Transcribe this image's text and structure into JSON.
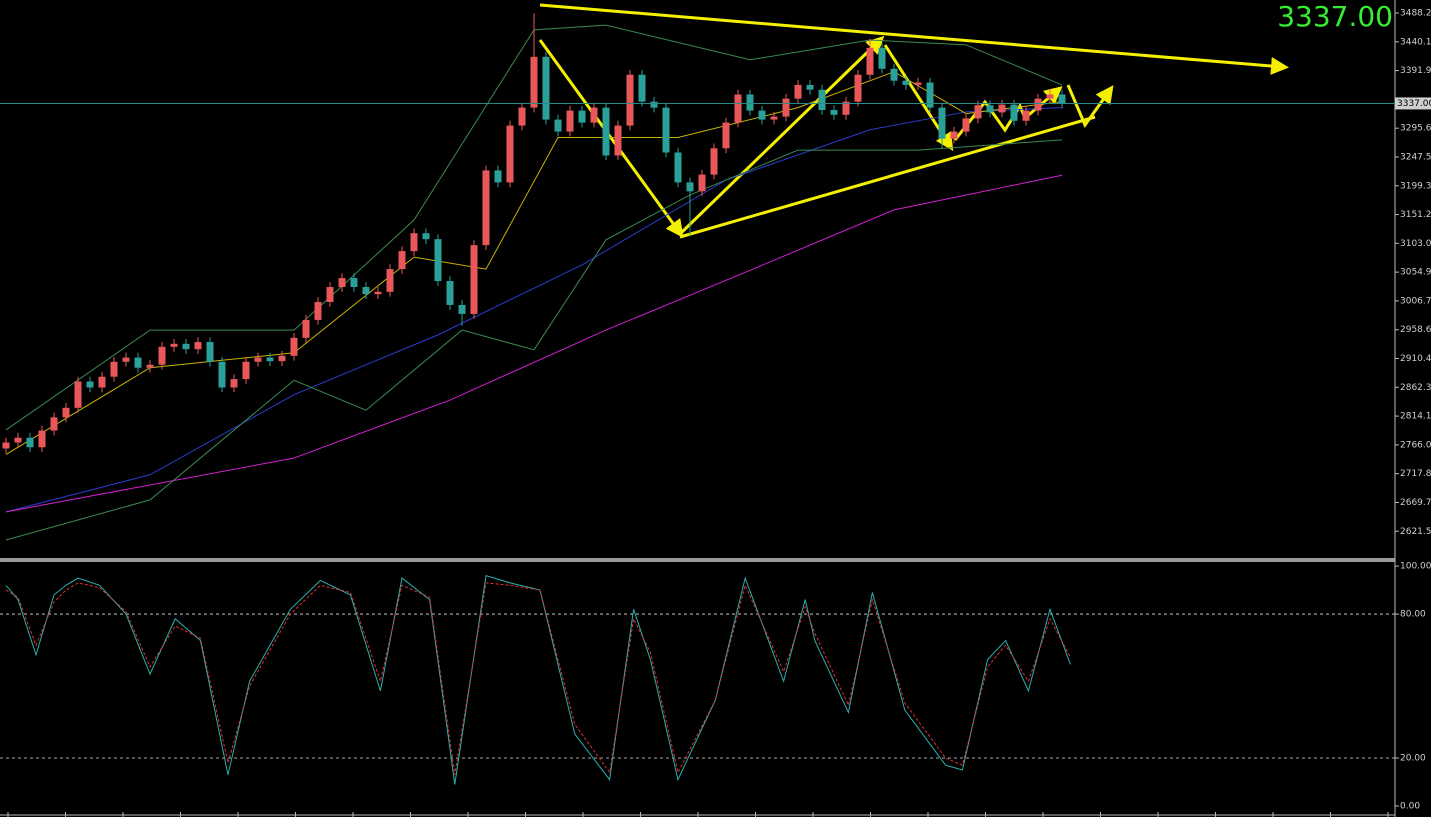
{
  "chart_data": [
    {
      "type": "candlestick",
      "open": [
        2760,
        2770,
        2778,
        2762,
        2790,
        2812,
        2828,
        2872,
        2862,
        2880,
        2905,
        2912,
        2895,
        2900,
        2930,
        2935,
        2926,
        2938,
        2905,
        2862,
        2876,
        2905,
        2912,
        2906,
        2915,
        2945,
        2975,
        3005,
        3030,
        3045,
        3030,
        3018,
        3022,
        3060,
        3090,
        3120,
        3110,
        3040,
        3000,
        2985,
        3100,
        3225,
        3205,
        3300,
        3330,
        3415,
        3310,
        3290,
        3325,
        3305,
        3330,
        3250,
        3300,
        3385,
        3340,
        3330,
        3255,
        3205,
        3190,
        3218,
        3262,
        3305,
        3352,
        3325,
        3310,
        3315,
        3345,
        3368,
        3360,
        3326,
        3318,
        3340,
        3385,
        3430,
        3395,
        3375,
        3368,
        3372,
        3330,
        3278,
        3290,
        3312,
        3334,
        3322,
        3335,
        3308,
        3325,
        3345,
        3352
      ],
      "high": [
        2778,
        2786,
        2786,
        2798,
        2820,
        2836,
        2880,
        2880,
        2888,
        2913,
        2920,
        2920,
        2908,
        2938,
        2943,
        2943,
        2946,
        2946,
        2913,
        2884,
        2913,
        2920,
        2920,
        2923,
        2953,
        2983,
        3013,
        3038,
        3053,
        3053,
        3038,
        3030,
        3068,
        3098,
        3128,
        3128,
        3118,
        3048,
        3008,
        3108,
        3233,
        3233,
        3308,
        3338,
        3488,
        3423,
        3318,
        3333,
        3333,
        3338,
        3338,
        3308,
        3393,
        3393,
        3348,
        3338,
        3263,
        3213,
        3226,
        3270,
        3313,
        3360,
        3360,
        3333,
        3323,
        3353,
        3376,
        3376,
        3368,
        3334,
        3348,
        3393,
        3445,
        3438,
        3403,
        3383,
        3380,
        3380,
        3338,
        3298,
        3320,
        3342,
        3342,
        3343,
        3343,
        3333,
        3353,
        3360,
        3360
      ],
      "low": [
        2752,
        2762,
        2754,
        2754,
        2782,
        2804,
        2820,
        2854,
        2854,
        2872,
        2897,
        2887,
        2887,
        2892,
        2922,
        2918,
        2918,
        2897,
        2854,
        2854,
        2868,
        2897,
        2898,
        2898,
        2907,
        2937,
        2967,
        2997,
        3022,
        3022,
        3010,
        3010,
        3014,
        3052,
        3082,
        3102,
        3032,
        2992,
        2965,
        2977,
        3092,
        3197,
        3197,
        3292,
        3322,
        3302,
        3282,
        3282,
        3297,
        3297,
        3242,
        3242,
        3292,
        3332,
        3322,
        3247,
        3197,
        3115,
        3182,
        3210,
        3254,
        3297,
        3317,
        3302,
        3302,
        3307,
        3337,
        3352,
        3318,
        3310,
        3310,
        3332,
        3377,
        3387,
        3367,
        3360,
        3360,
        3322,
        3262,
        3270,
        3282,
        3304,
        3314,
        3314,
        3300,
        3300,
        3317,
        3337,
        3329
      ],
      "close": [
        2770,
        2778,
        2762,
        2790,
        2812,
        2828,
        2872,
        2862,
        2880,
        2905,
        2912,
        2895,
        2900,
        2930,
        2935,
        2926,
        2938,
        2905,
        2862,
        2876,
        2905,
        2912,
        2906,
        2915,
        2945,
        2975,
        3005,
        3030,
        3045,
        3030,
        3018,
        3022,
        3060,
        3090,
        3120,
        3110,
        3040,
        3000,
        2985,
        3100,
        3225,
        3205,
        3300,
        3330,
        3415,
        3310,
        3290,
        3325,
        3305,
        3330,
        3250,
        3300,
        3385,
        3340,
        3330,
        3255,
        3205,
        3190,
        3218,
        3262,
        3305,
        3352,
        3325,
        3310,
        3315,
        3345,
        3368,
        3360,
        3326,
        3318,
        3340,
        3385,
        3430,
        3395,
        3375,
        3368,
        3372,
        3330,
        3278,
        3290,
        3312,
        3334,
        3322,
        3335,
        3308,
        3325,
        3345,
        3352,
        3337
      ],
      "up_color": "#e8585a",
      "down_color": "#2aa198",
      "ylim": [
        2578.5,
        3510
      ],
      "yticks": [
        3488.25,
        {
          "value": 3440.1,
          "label": "3440.10"
        },
        3391.95,
        3295.65,
        {
          "value": 3247.5,
          "label": "3247.50"
        },
        3199.35,
        {
          "value": 3151.2,
          "label": "3151.20"
        },
        3103.05,
        {
          "value": 3054.9,
          "label": "3054.90"
        },
        3006.75,
        {
          "value": 2958.6,
          "label": "2958.60"
        },
        2910.45,
        {
          "value": 2862.3,
          "label": "2862.30"
        },
        2814.15,
        {
          "value": 2766,
          "label": "2766.00"
        },
        2717.85,
        {
          "value": 2669.7,
          "label": "2669.70"
        },
        2621.55
      ],
      "current_price": {
        "value": 3337,
        "label": "3337.00"
      },
      "current_color": "#2a8a8a",
      "lines": [
        {
          "color": "#2a3ccc",
          "x": [
            0,
            12,
            24,
            36,
            48,
            60,
            72,
            80,
            88
          ],
          "values": [
            2654,
            2716,
            2850,
            2950,
            3067,
            3209,
            3293,
            3323,
            3330
          ]
        },
        {
          "color": "#d020d0",
          "x": [
            0,
            24,
            37,
            50,
            62,
            74,
            88
          ],
          "values": [
            2654,
            2744,
            2841,
            2958,
            3058,
            3159,
            3217
          ]
        },
        {
          "color": "#3a8a50",
          "x": [
            0,
            12,
            24,
            34,
            44,
            50,
            62,
            72,
            80,
            88
          ],
          "values": [
            2791,
            2958,
            2958,
            3142,
            3460,
            3468,
            3410,
            3443,
            3435,
            3368
          ]
        },
        {
          "color": "#3a8a50",
          "x": [
            0,
            12,
            24,
            30,
            38,
            44,
            50,
            57,
            66,
            76,
            88
          ],
          "values": [
            2607,
            2674,
            2874,
            2824,
            2958,
            2925,
            3109,
            3184,
            3259,
            3259,
            3276
          ]
        },
        {
          "color": "#c8b400",
          "x": [
            0,
            12,
            24,
            34,
            40,
            46,
            56,
            66,
            74,
            80,
            88
          ],
          "values": [
            2750,
            2895,
            2920,
            3080,
            3060,
            3280,
            3280,
            3330,
            3390,
            3320,
            3340
          ]
        }
      ]
    },
    {
      "type": "line",
      "x": [
        0,
        1,
        2.5,
        4,
        5,
        6,
        7.8,
        10,
        12,
        14.1,
        16.2,
        18.5,
        20.3,
        23.7,
        26.2,
        28.7,
        31.2,
        33,
        35.3,
        37.4,
        40,
        42,
        44.5,
        47.4,
        50.3,
        52.3,
        53.7,
        56,
        59.1,
        61.6,
        64.8,
        66.6,
        67.4,
        70.2,
        72.2,
        74.9,
        78.3,
        79.7,
        81.8,
        83.3,
        85.2,
        87,
        88.7
      ],
      "series": [
        {
          "color": "#2ab0b0",
          "dashed": false,
          "values": [
            92,
            86,
            63,
            88,
            92,
            95,
            92,
            80,
            55,
            78,
            69,
            13,
            52,
            82,
            94,
            88,
            48,
            95,
            86,
            9,
            96,
            93,
            90,
            30,
            11,
            82,
            61,
            11,
            44,
            95,
            52,
            86,
            69,
            39,
            89,
            40,
            17,
            15,
            61,
            69,
            48,
            82,
            59
          ]
        },
        {
          "color": "#e03030",
          "dashed": true,
          "values": [
            90,
            87,
            67,
            85,
            90,
            93,
            91,
            81,
            58,
            75,
            70,
            18,
            50,
            80,
            92,
            89,
            52,
            92,
            87,
            13,
            93,
            92,
            90,
            34,
            14,
            78,
            64,
            14,
            44,
            92,
            56,
            83,
            72,
            42,
            86,
            43,
            20,
            17,
            58,
            67,
            52,
            78,
            62
          ]
        }
      ],
      "ylim": [
        -3.75,
        101.7
      ],
      "yticks": [
        {
          "value": 100,
          "label": "100.00"
        },
        {
          "value": 80,
          "label": "80.00"
        },
        {
          "value": 20,
          "label": "20.00"
        },
        {
          "value": 0,
          "label": "0.00"
        }
      ],
      "level_lines": true
    }
  ]
}
